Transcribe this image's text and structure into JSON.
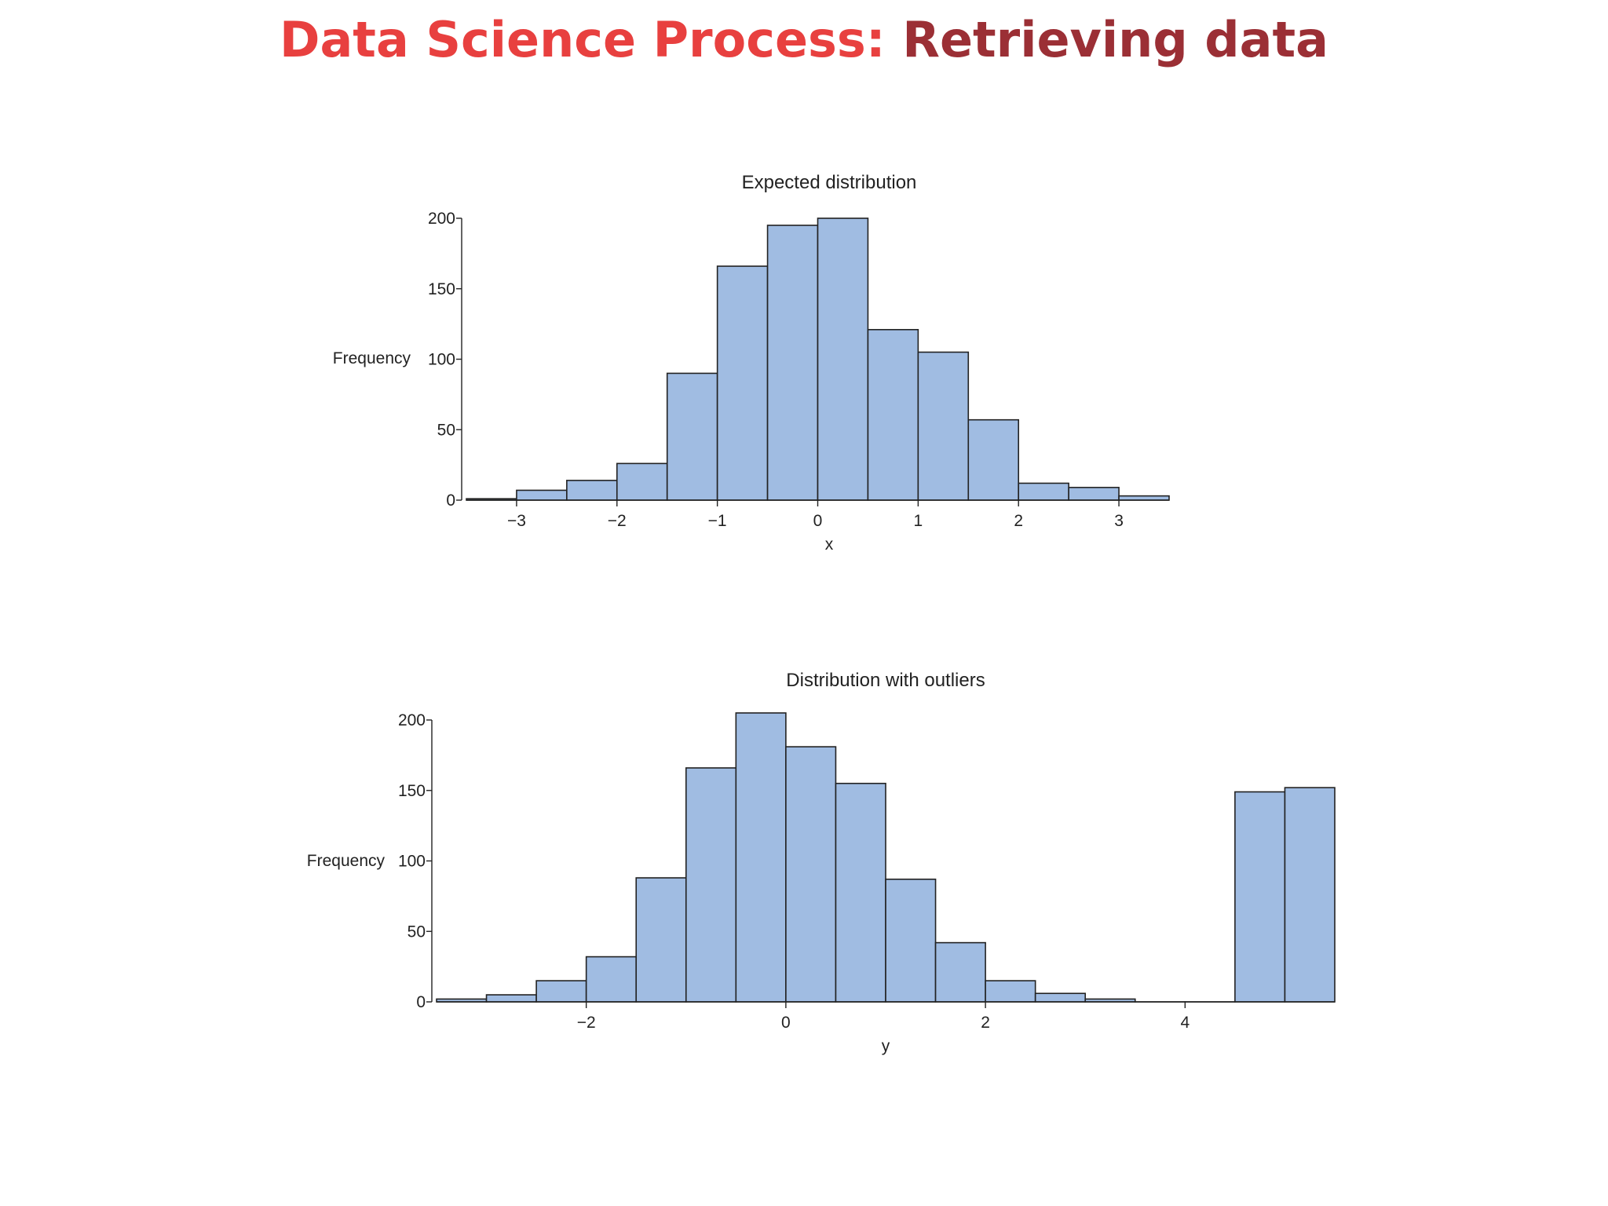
{
  "slide": {
    "title_part1": "Data Science Process: ",
    "title_part2": "Retrieving data",
    "title_color1": "#e8403f",
    "title_color2": "#9b2f35"
  },
  "colors": {
    "bar_fill": "#a0bce2",
    "bar_stroke": "#222222",
    "axis": "#222222"
  },
  "chart_data": [
    {
      "type": "bar",
      "title": "Expected distribution",
      "xlabel": "x",
      "ylabel": "Frequency",
      "bin_width": 0.5,
      "bins": [
        {
          "start": -3.5,
          "value": 1
        },
        {
          "start": -3.0,
          "value": 7
        },
        {
          "start": -2.5,
          "value": 14
        },
        {
          "start": -2.0,
          "value": 26
        },
        {
          "start": -1.5,
          "value": 90
        },
        {
          "start": -1.0,
          "value": 166
        },
        {
          "start": -0.5,
          "value": 195
        },
        {
          "start": 0.0,
          "value": 200
        },
        {
          "start": 0.5,
          "value": 121
        },
        {
          "start": 1.0,
          "value": 105
        },
        {
          "start": 1.5,
          "value": 57
        },
        {
          "start": 2.0,
          "value": 12
        },
        {
          "start": 2.5,
          "value": 9
        },
        {
          "start": 3.0,
          "value": 3
        }
      ],
      "xlim": [
        -3.5,
        3.5
      ],
      "ylim": [
        0,
        200
      ],
      "xticks": [
        -3,
        -2,
        -1,
        0,
        1,
        2,
        3
      ],
      "xtick_labels": [
        "−3",
        "−2",
        "−1",
        "0",
        "1",
        "2",
        "3"
      ],
      "yticks": [
        0,
        50,
        100,
        150,
        200
      ],
      "ytick_labels": [
        "0",
        "50",
        "100",
        "150",
        "200"
      ],
      "grid": false
    },
    {
      "type": "bar",
      "title": "Distribution with outliers",
      "xlabel": "y",
      "ylabel": "Frequency",
      "bin_width": 0.5,
      "bins": [
        {
          "start": -3.5,
          "value": 2
        },
        {
          "start": -3.0,
          "value": 5
        },
        {
          "start": -2.5,
          "value": 15
        },
        {
          "start": -2.0,
          "value": 32
        },
        {
          "start": -1.5,
          "value": 88
        },
        {
          "start": -1.0,
          "value": 166
        },
        {
          "start": -0.5,
          "value": 205
        },
        {
          "start": 0.0,
          "value": 181
        },
        {
          "start": 0.5,
          "value": 155
        },
        {
          "start": 1.0,
          "value": 87
        },
        {
          "start": 1.5,
          "value": 42
        },
        {
          "start": 2.0,
          "value": 15
        },
        {
          "start": 2.5,
          "value": 6
        },
        {
          "start": 3.0,
          "value": 2
        },
        {
          "start": 3.5,
          "value": 0
        },
        {
          "start": 4.0,
          "value": 0
        },
        {
          "start": 4.5,
          "value": 149
        },
        {
          "start": 5.0,
          "value": 152
        }
      ],
      "xlim": [
        -3.5,
        5.5
      ],
      "ylim": [
        0,
        200
      ],
      "xticks": [
        -2,
        0,
        2,
        4
      ],
      "xtick_labels": [
        "−2",
        "0",
        "2",
        "4"
      ],
      "yticks": [
        0,
        50,
        100,
        150,
        200
      ],
      "ytick_labels": [
        "0",
        "50",
        "100",
        "150",
        "200"
      ],
      "grid": false
    }
  ]
}
